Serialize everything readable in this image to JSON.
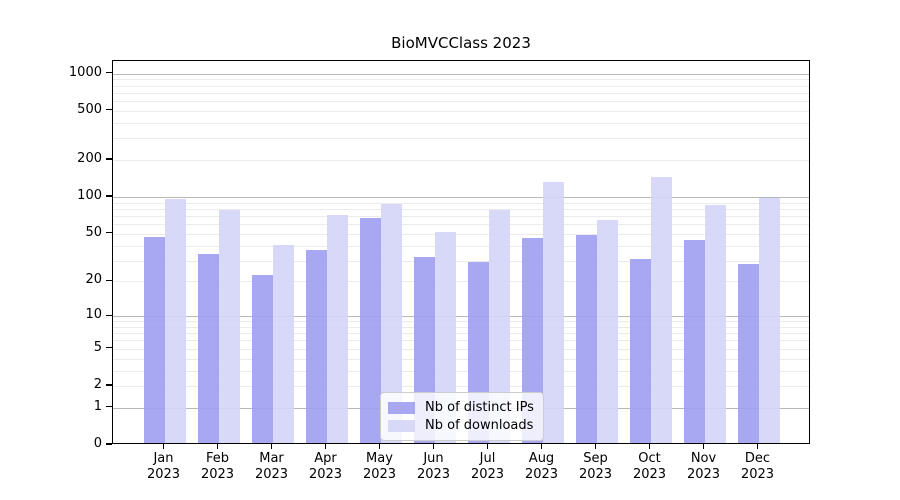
{
  "chart_data": {
    "type": "bar",
    "title": "BioMVCClass 2023",
    "yscale": "log10(1+x)",
    "grid": "horizontal major+minor",
    "legend_position": "inside bottom-center",
    "categories": [
      {
        "month": "Jan",
        "year": "2023"
      },
      {
        "month": "Feb",
        "year": "2023"
      },
      {
        "month": "Mar",
        "year": "2023"
      },
      {
        "month": "Apr",
        "year": "2023"
      },
      {
        "month": "May",
        "year": "2023"
      },
      {
        "month": "Jun",
        "year": "2023"
      },
      {
        "month": "Jul",
        "year": "2023"
      },
      {
        "month": "Aug",
        "year": "2023"
      },
      {
        "month": "Sep",
        "year": "2023"
      },
      {
        "month": "Oct",
        "year": "2023"
      },
      {
        "month": "Nov",
        "year": "2023"
      },
      {
        "month": "Dec",
        "year": "2023"
      }
    ],
    "series": [
      {
        "name": "Nb of distinct IPs",
        "color": "#a8a8f0",
        "fill": "rgba(158,158,241,0.9)",
        "values": [
          45,
          33,
          22,
          35,
          65,
          31,
          28,
          44,
          47,
          30,
          43,
          27
        ]
      },
      {
        "name": "Nb of downloads",
        "color": "#d8d8f8",
        "fill": "rgba(212,212,247,0.9)",
        "values": [
          92,
          75,
          39,
          69,
          84,
          50,
          76,
          127,
          63,
          141,
          83,
          95
        ]
      }
    ],
    "yticks": [
      1000,
      500,
      200,
      100,
      50,
      20,
      10,
      5,
      2,
      1,
      0
    ],
    "grid_major": [
      1,
      10,
      100,
      1000
    ],
    "grid_minor_decades": [
      1,
      10,
      100
    ],
    "ylim": [
      0,
      1260
    ],
    "axis_color": "#000000",
    "grid_major_color": "#b8b8b8",
    "grid_minor_color": "#ebebeb"
  }
}
